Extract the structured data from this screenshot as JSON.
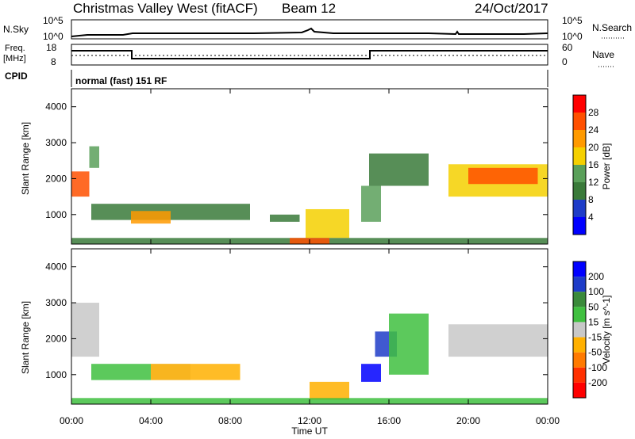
{
  "header": {
    "title": "Christmas Valley West (fitACF)",
    "beam": "Beam 12",
    "date": "24/Oct/2017"
  },
  "nsky": {
    "left_label": "N.Sky",
    "right_label": "N.Search",
    "left_ticks": [
      "10^5",
      "10^0"
    ],
    "right_ticks": [
      "10^5",
      "10^0"
    ]
  },
  "freq": {
    "left_label_1": "Freq.",
    "left_label_2": "[MHz]",
    "left_ticks": [
      "18",
      "8"
    ],
    "right_label": "Nave",
    "right_ticks": [
      "60",
      "0"
    ],
    "cpid_label": "CPID",
    "cpid_text": "normal (fast) 151 RF"
  },
  "axes": {
    "ylabel": "Slant Range [km]",
    "y_ticks": [
      "4000",
      "3000",
      "2000",
      "1000"
    ],
    "x_ticks": [
      "00:00",
      "04:00",
      "08:00",
      "12:00",
      "16:00",
      "20:00",
      "00:00"
    ],
    "xlabel": "Time UT"
  },
  "power_scale": {
    "label": "Power [dB]",
    "ticks": [
      "28",
      "24",
      "20",
      "16",
      "12",
      "8",
      "4"
    ],
    "colors": [
      "#ff0000",
      "#ff5000",
      "#ff9a00",
      "#f5d000",
      "#5aa05a",
      "#3a7a3a",
      "#1e3cc8",
      "#0000ff"
    ]
  },
  "velocity_scale": {
    "label": "Velocity [m s^-1]",
    "ticks": [
      "200",
      "100",
      "50",
      "15",
      "-15",
      "-50",
      "-100",
      "-200"
    ],
    "colors": [
      "#0000ff",
      "#1e3cc8",
      "#3a8a3a",
      "#40c040",
      "#c8c8c8",
      "#ffb000",
      "#ff7a00",
      "#ff3000",
      "#ff0000"
    ]
  },
  "chart_data": {
    "type": "heatmap",
    "xlabel": "Time UT",
    "ylabel": "Slant Range [km]",
    "xlim": [
      0,
      24
    ],
    "ylim": [
      180,
      4500
    ],
    "panels": [
      {
        "quantity": "Power",
        "unit": "dB",
        "scale": [
          0,
          30
        ],
        "regions": [
          {
            "t": [
              0.0,
              0.9
            ],
            "r": [
              1500,
              2200
            ],
            "value": 26
          },
          {
            "t": [
              0.9,
              1.4
            ],
            "r": [
              2300,
              2900
            ],
            "value": 14
          },
          {
            "t": [
              1.0,
              9.0
            ],
            "r": [
              850,
              1300
            ],
            "value": 10
          },
          {
            "t": [
              3.0,
              5.0
            ],
            "r": [
              750,
              1100
            ],
            "value": 20
          },
          {
            "t": [
              10.0,
              11.5
            ],
            "r": [
              800,
              1000
            ],
            "value": 8
          },
          {
            "t": [
              11.8,
              14.0
            ],
            "r": [
              350,
              1150
            ],
            "value": 18
          },
          {
            "t": [
              14.6,
              15.6
            ],
            "r": [
              800,
              1800
            ],
            "value": 14
          },
          {
            "t": [
              15.0,
              18.0
            ],
            "r": [
              1800,
              2700
            ],
            "value": 8
          },
          {
            "t": [
              19.0,
              24.0
            ],
            "r": [
              1500,
              2400
            ],
            "value": 18
          },
          {
            "t": [
              20.0,
              23.5
            ],
            "r": [
              1850,
              2300
            ],
            "value": 25
          },
          {
            "t": [
              0.0,
              24.0
            ],
            "r": [
              180,
              350
            ],
            "value": 10
          },
          {
            "t": [
              11.0,
              13.0
            ],
            "r": [
              180,
              350
            ],
            "value": 26
          }
        ]
      },
      {
        "quantity": "Velocity",
        "unit": "m s^-1",
        "scale": [
          -250,
          250
        ],
        "regions": [
          {
            "t": [
              0.0,
              1.4
            ],
            "r": [
              1500,
              3000
            ],
            "value": 0
          },
          {
            "t": [
              1.0,
              4.0
            ],
            "r": [
              850,
              1300
            ],
            "value": 40
          },
          {
            "t": [
              4.0,
              6.0
            ],
            "r": [
              850,
              1300
            ],
            "value": 0
          },
          {
            "t": [
              4.0,
              8.5
            ],
            "r": [
              850,
              1300
            ],
            "value": -40
          },
          {
            "t": [
              12.0,
              14.0
            ],
            "r": [
              300,
              800
            ],
            "value": -40
          },
          {
            "t": [
              14.6,
              15.6
            ],
            "r": [
              800,
              1300
            ],
            "value": 200
          },
          {
            "t": [
              15.3,
              16.4
            ],
            "r": [
              1500,
              2200
            ],
            "value": 150
          },
          {
            "t": [
              16.0,
              18.0
            ],
            "r": [
              1000,
              2700
            ],
            "value": 40
          },
          {
            "t": [
              19.0,
              24.0
            ],
            "r": [
              1500,
              2400
            ],
            "value": 0
          },
          {
            "t": [
              0.0,
              24.0
            ],
            "r": [
              180,
              350
            ],
            "value": 30
          }
        ]
      }
    ]
  }
}
